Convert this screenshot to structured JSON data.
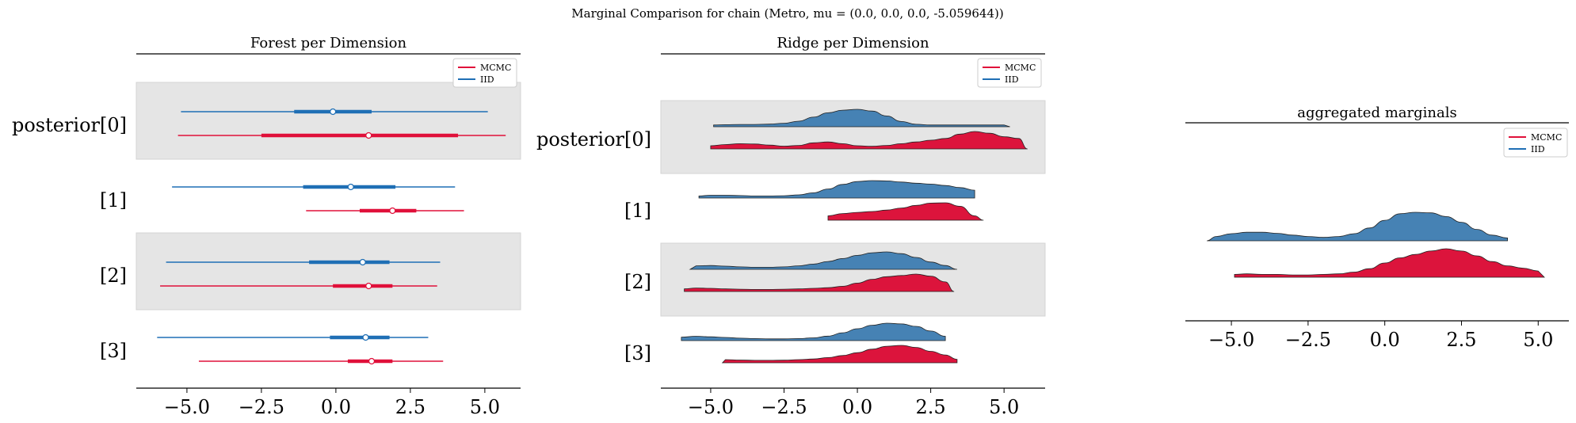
{
  "figure": {
    "suptitle": "Marginal Comparison for chain (Metro, mu = (0.0, 0.0, 0.0, -5.059644))"
  },
  "colors": {
    "mcmc": "#e0103a",
    "iid": "#1f6fb5",
    "iid_fill": "#4682b4",
    "mcmc_fill": "#dc143c",
    "band": "#e5e5e5",
    "axis": "#000000"
  },
  "legend": {
    "placement": "top-right",
    "entries": [
      "MCMC",
      "IID"
    ]
  },
  "chart_data": [
    {
      "type": "forest",
      "title": "Forest per Dimension",
      "xlim": [
        -6.7,
        6.2
      ],
      "xticks": [
        "−5.0",
        "−2.5",
        "0.0",
        "2.5",
        "5.0"
      ],
      "xtick_values": [
        -5,
        -2.5,
        0,
        2.5,
        5
      ],
      "row_labels": [
        "posterior[0]",
        "[1]",
        "[2]",
        "[3]"
      ],
      "shaded_rows": [
        0,
        2
      ],
      "series": [
        {
          "name": "IID",
          "rows": [
            {
              "hdi": [
                -5.2,
                5.1
              ],
              "iqr": [
                -1.4,
                1.2
              ],
              "median": -0.1
            },
            {
              "hdi": [
                -5.5,
                4.0
              ],
              "iqr": [
                -1.1,
                2.0
              ],
              "median": 0.5
            },
            {
              "hdi": [
                -5.7,
                3.5
              ],
              "iqr": [
                -0.9,
                1.8
              ],
              "median": 0.9
            },
            {
              "hdi": [
                -6.0,
                3.1
              ],
              "iqr": [
                -0.2,
                1.8
              ],
              "median": 1.0
            }
          ]
        },
        {
          "name": "MCMC",
          "rows": [
            {
              "hdi": [
                -5.3,
                5.7
              ],
              "iqr": [
                -2.5,
                4.1
              ],
              "median": 1.1
            },
            {
              "hdi": [
                -1.0,
                4.3
              ],
              "iqr": [
                0.8,
                2.7
              ],
              "median": 1.9
            },
            {
              "hdi": [
                -5.9,
                3.4
              ],
              "iqr": [
                -0.1,
                1.9
              ],
              "median": 1.1
            },
            {
              "hdi": [
                -4.6,
                3.6
              ],
              "iqr": [
                0.4,
                1.9
              ],
              "median": 1.2
            }
          ]
        }
      ]
    },
    {
      "type": "ridge",
      "title": "Ridge per Dimension",
      "xlim": [
        -6.7,
        6.4
      ],
      "xticks": [
        "−5.0",
        "−2.5",
        "0.0",
        "2.5",
        "5.0"
      ],
      "xtick_values": [
        -5,
        -2.5,
        0,
        2.5,
        5
      ],
      "row_labels": [
        "posterior[0]",
        "[1]",
        "[2]",
        "[3]"
      ],
      "shaded_rows": [
        0,
        2
      ],
      "x_grid": [
        -6.0,
        -5.5,
        -5.0,
        -4.5,
        -4.0,
        -3.5,
        -3.0,
        -2.5,
        -2.0,
        -1.5,
        -1.0,
        -0.5,
        0.0,
        0.5,
        1.0,
        1.5,
        2.0,
        2.5,
        3.0,
        3.5,
        4.0,
        4.5,
        5.0,
        5.5,
        6.0
      ],
      "series": [
        {
          "name": "IID",
          "rows": [
            {
              "range": [
                -4.9,
                5.2
              ],
              "density": [
                0,
                0,
                0.1,
                0.12,
                0.13,
                0.13,
                0.15,
                0.2,
                0.32,
                0.55,
                0.8,
                0.95,
                1.0,
                0.9,
                0.62,
                0.3,
                0.14,
                0.1,
                0.1,
                0.1,
                0.1,
                0.1,
                0.1,
                0,
                0
              ]
            },
            {
              "range": [
                -5.4,
                4.0
              ],
              "density": [
                0,
                0.12,
                0.16,
                0.16,
                0.14,
                0.12,
                0.12,
                0.13,
                0.18,
                0.3,
                0.52,
                0.78,
                0.95,
                1.0,
                0.98,
                0.92,
                0.85,
                0.8,
                0.72,
                0.6,
                0.45,
                0,
                0,
                0,
                0
              ]
            },
            {
              "range": [
                -5.7,
                3.4
              ],
              "density": [
                0,
                0.2,
                0.22,
                0.18,
                0.14,
                0.12,
                0.12,
                0.14,
                0.2,
                0.3,
                0.45,
                0.62,
                0.8,
                0.95,
                1.0,
                0.9,
                0.68,
                0.42,
                0.22,
                0,
                0,
                0,
                0,
                0,
                0
              ]
            },
            {
              "range": [
                -6.0,
                3.0
              ],
              "density": [
                0.2,
                0.25,
                0.22,
                0.18,
                0.14,
                0.12,
                0.1,
                0.1,
                0.12,
                0.16,
                0.26,
                0.45,
                0.68,
                0.88,
                1.0,
                0.96,
                0.82,
                0.55,
                0.25,
                0,
                0,
                0,
                0,
                0,
                0
              ]
            }
          ]
        },
        {
          "name": "MCMC",
          "rows": [
            {
              "range": [
                -5.0,
                5.8
              ],
              "density": [
                0,
                0,
                0.18,
                0.25,
                0.3,
                0.28,
                0.22,
                0.16,
                0.2,
                0.35,
                0.4,
                0.3,
                0.18,
                0.15,
                0.2,
                0.3,
                0.4,
                0.5,
                0.6,
                0.85,
                1.0,
                0.9,
                0.7,
                0.6,
                0
              ]
            },
            {
              "range": [
                -1.0,
                4.3
              ],
              "density": [
                0,
                0,
                0,
                0,
                0,
                0,
                0,
                0,
                0,
                0,
                0.25,
                0.38,
                0.45,
                0.5,
                0.58,
                0.7,
                0.85,
                0.98,
                1.0,
                0.8,
                0.25,
                0,
                0,
                0,
                0
              ]
            },
            {
              "range": [
                -5.9,
                3.3
              ],
              "density": [
                0.15,
                0.2,
                0.18,
                0.15,
                0.13,
                0.12,
                0.12,
                0.13,
                0.15,
                0.18,
                0.22,
                0.3,
                0.48,
                0.7,
                0.85,
                0.92,
                1.0,
                0.88,
                0.55,
                0,
                0,
                0,
                0,
                0,
                0
              ]
            },
            {
              "range": [
                -4.6,
                3.4
              ],
              "density": [
                0,
                0,
                0.1,
                0.18,
                0.16,
                0.14,
                0.14,
                0.15,
                0.18,
                0.22,
                0.3,
                0.42,
                0.58,
                0.78,
                0.95,
                1.0,
                0.88,
                0.66,
                0.45,
                0.2,
                0,
                0,
                0,
                0,
                0
              ]
            }
          ]
        }
      ]
    },
    {
      "type": "ridge",
      "title": "aggregated marginals",
      "xlim": [
        -6.5,
        6.0
      ],
      "xticks": [
        "−5.0",
        "−2.5",
        "0.0",
        "2.5",
        "5.0"
      ],
      "xtick_values": [
        -5,
        -2.5,
        0,
        2.5,
        5
      ],
      "x_grid": [
        -6.0,
        -5.5,
        -5.0,
        -4.5,
        -4.0,
        -3.5,
        -3.0,
        -2.5,
        -2.0,
        -1.5,
        -1.0,
        -0.5,
        0.0,
        0.5,
        1.0,
        1.5,
        2.0,
        2.5,
        3.0,
        3.5,
        4.0,
        4.5,
        5.0,
        5.5,
        6.0
      ],
      "series": [
        {
          "name": "IID",
          "range": [
            -5.8,
            4.0
          ],
          "density": [
            0,
            0.15,
            0.25,
            0.3,
            0.3,
            0.26,
            0.2,
            0.15,
            0.12,
            0.15,
            0.25,
            0.45,
            0.72,
            0.95,
            1.0,
            0.98,
            0.85,
            0.65,
            0.4,
            0.2,
            0.1,
            0,
            0,
            0,
            0
          ]
        },
        {
          "name": "MCMC",
          "range": [
            -4.9,
            5.2
          ],
          "density": [
            0,
            0,
            0.1,
            0.12,
            0.1,
            0.1,
            0.08,
            0.08,
            0.1,
            0.12,
            0.18,
            0.3,
            0.5,
            0.68,
            0.8,
            0.92,
            1.0,
            0.92,
            0.75,
            0.55,
            0.4,
            0.32,
            0.22,
            0.1,
            0
          ]
        }
      ]
    }
  ]
}
